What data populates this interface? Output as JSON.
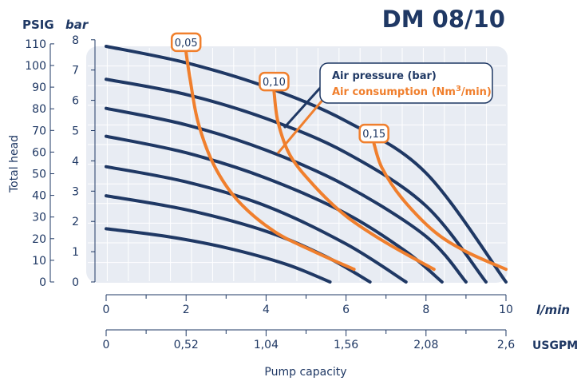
{
  "chart_data": {
    "type": "line",
    "title": "DM 08/10",
    "y_left_unit_outer": "PSIG",
    "y_left_unit_inner": "bar",
    "ylabel": "Total head",
    "xlabel": "Pump capacity",
    "x_unit_primary": "l/min",
    "x_unit_secondary": "USGPM",
    "x_primary_ticks": [
      "0",
      "2",
      "4",
      "6",
      "8",
      "10"
    ],
    "x_secondary_ticks": [
      "0",
      "0,52",
      "1,04",
      "1,56",
      "2,08",
      "2,6"
    ],
    "psig_ticks": [
      "0",
      "10",
      "20",
      "30",
      "40",
      "50",
      "60",
      "70",
      "80",
      "90",
      "100",
      "110"
    ],
    "bar_ticks": [
      "0",
      "1",
      "2",
      "3",
      "4",
      "5",
      "6",
      "7",
      "8"
    ],
    "xlim": [
      0,
      10
    ],
    "ylim_bar": [
      0,
      8
    ],
    "grid": true,
    "legend": {
      "position": "top-right",
      "air_pressure_label": "Air pressure (bar)",
      "air_consumption_label_pre": "Air consumption (Nm",
      "air_consumption_label_sup": "3",
      "air_consumption_label_post": "/min)"
    },
    "colors": {
      "air_pressure": "#1f3864",
      "air_consumption": "#f07f2d",
      "plot_bg": "#e8ecf3",
      "grid": "#ffffff"
    },
    "air_pressure_series": [
      {
        "points": [
          [
            0,
            2.1
          ],
          [
            1.5,
            1.8
          ],
          [
            3,
            1.35
          ],
          [
            4.5,
            0.7
          ],
          [
            5.6,
            0.0
          ]
        ]
      },
      {
        "points": [
          [
            0,
            3.4
          ],
          [
            2,
            2.85
          ],
          [
            4,
            2.0
          ],
          [
            5.5,
            1.0
          ],
          [
            6.6,
            0.0
          ]
        ]
      },
      {
        "points": [
          [
            0,
            4.55
          ],
          [
            2,
            3.95
          ],
          [
            4,
            3.0
          ],
          [
            6,
            1.5
          ],
          [
            7.5,
            0.0
          ]
        ]
      },
      {
        "points": [
          [
            0,
            5.75
          ],
          [
            2,
            5.1
          ],
          [
            4,
            4.1
          ],
          [
            6,
            2.7
          ],
          [
            7.5,
            1.2
          ],
          [
            8.4,
            0.0
          ]
        ]
      },
      {
        "points": [
          [
            0,
            6.85
          ],
          [
            2,
            6.2
          ],
          [
            4,
            5.2
          ],
          [
            6,
            3.8
          ],
          [
            8,
            1.8
          ],
          [
            9.0,
            0.0
          ]
        ]
      },
      {
        "points": [
          [
            0,
            8.0
          ],
          [
            2,
            7.4
          ],
          [
            4,
            6.45
          ],
          [
            6,
            5.1
          ],
          [
            8,
            3.0
          ],
          [
            9.5,
            0.0
          ]
        ]
      },
      {
        "points": [
          [
            0,
            9.3
          ],
          [
            2,
            8.65
          ],
          [
            4,
            7.7
          ],
          [
            6,
            6.35
          ],
          [
            8,
            4.3
          ],
          [
            10.0,
            0.0
          ]
        ]
      }
    ],
    "air_consumption_series": [
      {
        "label": "0,05",
        "points": [
          [
            2.0,
            9.05
          ],
          [
            2.1,
            8.0
          ],
          [
            2.3,
            6.3
          ],
          [
            2.7,
            4.6
          ],
          [
            3.3,
            3.2
          ],
          [
            4.2,
            2.0
          ],
          [
            5.2,
            1.2
          ],
          [
            6.2,
            0.5
          ]
        ]
      },
      {
        "label": "0,10",
        "points": [
          [
            4.2,
            7.5
          ],
          [
            4.3,
            6.3
          ],
          [
            4.6,
            5.0
          ],
          [
            5.2,
            3.8
          ],
          [
            6.0,
            2.6
          ],
          [
            7.0,
            1.55
          ],
          [
            8.2,
            0.5
          ]
        ]
      },
      {
        "label": "0,15",
        "points": [
          [
            6.7,
            5.45
          ],
          [
            6.9,
            4.5
          ],
          [
            7.4,
            3.3
          ],
          [
            8.2,
            2.0
          ],
          [
            9.0,
            1.2
          ],
          [
            10.0,
            0.5
          ]
        ]
      }
    ]
  }
}
